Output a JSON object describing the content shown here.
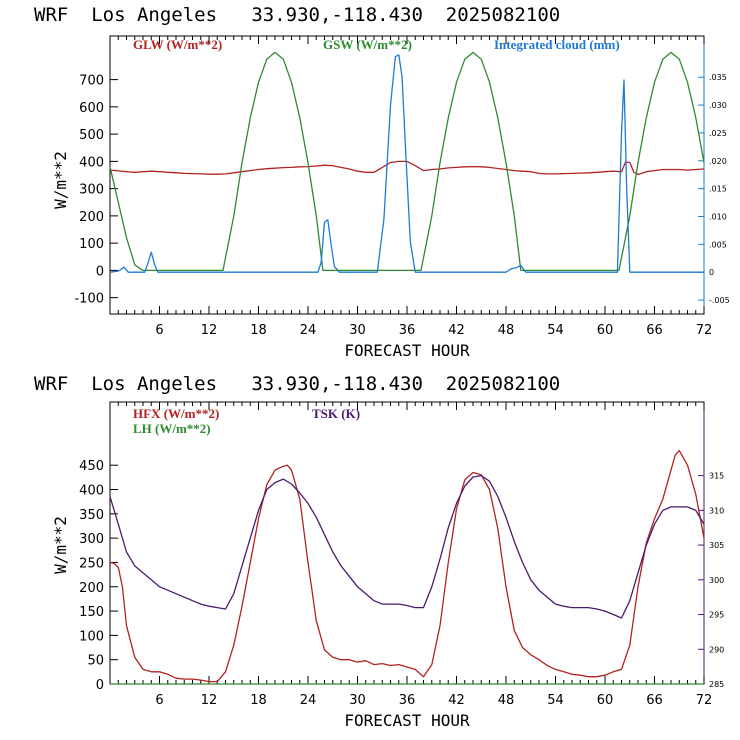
{
  "colors": {
    "red": "#b22222",
    "green": "#2e8b2e",
    "blue": "#1e7ad2",
    "purple": "#4b1a6e",
    "axis_left": "#000000",
    "axis_right_top": "#1e7ad2",
    "axis_right_bottom": "#4b1a6e"
  },
  "chart_data": [
    {
      "type": "line",
      "title": "WRF  Los Angeles   33.930,-118.430  2025082100",
      "xlabel": "FORECAST HOUR",
      "ylabel": "W/m**2",
      "xlim": [
        0,
        72
      ],
      "ylim": [
        -160,
        860
      ],
      "x_ticks": [
        "6",
        "12",
        "18",
        "24",
        "30",
        "36",
        "42",
        "48",
        "54",
        "60",
        "66",
        "72"
      ],
      "y_ticks": [
        "-100",
        "0",
        "100",
        "200",
        "300",
        "400",
        "500",
        "600",
        "700"
      ],
      "y2lim": [
        -0.0075,
        0.0424
      ],
      "y2_ticks": [
        "-.005",
        "0",
        ".005",
        ".010",
        ".015",
        ".020",
        ".025",
        ".030",
        ".035"
      ],
      "legend": [
        "GLW (W/m**2)",
        "GSW (W/m**2)",
        "Integrated cloud (mm)"
      ],
      "series": [
        {
          "name": "GLW (W/m**2)",
          "axis": "left",
          "color": "#b22222",
          "x": [
            0,
            1,
            2,
            3,
            4,
            5,
            6,
            7,
            8,
            9,
            10,
            11,
            12,
            13,
            14,
            15,
            16,
            17,
            18,
            19,
            20,
            21,
            22,
            23,
            24,
            25,
            26,
            27,
            28,
            29,
            30,
            31,
            32,
            33,
            34,
            35,
            36,
            37,
            38,
            39,
            40,
            41,
            42,
            43,
            44,
            45,
            46,
            47,
            48,
            49,
            50,
            51,
            52,
            53,
            54,
            55,
            56,
            57,
            58,
            59,
            60,
            61,
            62,
            62.5,
            63,
            63.5,
            64,
            65,
            66,
            67,
            68,
            69,
            70,
            71,
            72
          ],
          "y": [
            368,
            365,
            362,
            360,
            362,
            364,
            362,
            360,
            358,
            356,
            355,
            354,
            353,
            353,
            354,
            358,
            362,
            366,
            370,
            373,
            375,
            377,
            378,
            380,
            381,
            383,
            386,
            384,
            378,
            372,
            364,
            360,
            360,
            378,
            396,
            400,
            400,
            384,
            366,
            370,
            372,
            376,
            378,
            380,
            381,
            380,
            378,
            374,
            370,
            366,
            364,
            362,
            356,
            354,
            354,
            355,
            356,
            357,
            358,
            360,
            362,
            364,
            362,
            398,
            396,
            360,
            352,
            362,
            366,
            370,
            370,
            370,
            368,
            370,
            372
          ]
        },
        {
          "name": "GSW (W/m**2)",
          "axis": "left",
          "color": "#2e8b2e",
          "x": [
            0,
            1,
            2,
            3,
            4,
            5,
            6,
            7,
            8,
            9,
            10,
            11,
            12,
            13,
            13.7,
            15,
            16,
            17,
            18,
            19,
            20,
            21,
            22,
            23,
            24,
            25,
            25.8,
            27,
            28,
            29,
            30,
            31,
            32,
            33,
            34,
            35,
            36,
            37,
            37.7,
            39,
            40,
            41,
            42,
            43,
            44,
            45,
            46,
            47,
            48,
            49,
            49.8,
            51,
            52,
            53,
            54,
            55,
            56,
            57,
            58,
            59,
            60,
            61,
            61.7,
            63,
            64,
            65,
            66,
            67,
            68,
            69,
            70,
            71,
            72
          ],
          "y": [
            380,
            250,
            120,
            20,
            0,
            0,
            0,
            0,
            0,
            0,
            0,
            0,
            0,
            0,
            0,
            200,
            395,
            560,
            690,
            775,
            800,
            775,
            690,
            560,
            395,
            200,
            0,
            0,
            0,
            0,
            0,
            0,
            0,
            0,
            0,
            0,
            0,
            0,
            0,
            200,
            395,
            560,
            690,
            775,
            800,
            775,
            690,
            560,
            395,
            200,
            0,
            0,
            0,
            0,
            0,
            0,
            0,
            0,
            0,
            0,
            0,
            0,
            0,
            200,
            395,
            560,
            690,
            775,
            800,
            775,
            690,
            560,
            395
          ]
        },
        {
          "name": "Integrated cloud (mm)",
          "axis": "right",
          "color": "#1e7ad2",
          "x": [
            0,
            1,
            1.7,
            2.2,
            4.2,
            4.6,
            5,
            5.4,
            5.8,
            25.2,
            25.6,
            26,
            26.4,
            26.8,
            27.2,
            27.8,
            32.4,
            33.2,
            34,
            34.6,
            35,
            35.4,
            35.8,
            36.4,
            37,
            48,
            48.6,
            49.2,
            49.8,
            50.4,
            61.5,
            62,
            62.3,
            62.6,
            63,
            63.4,
            72
          ],
          "y": [
            0,
            0.0002,
            0.0009,
            0,
            0,
            0.0016,
            0.0036,
            0.0014,
            0,
            0,
            0.0018,
            0.009,
            0.0094,
            0.005,
            0.001,
            0,
            0,
            0.0095,
            0.03,
            0.0387,
            0.039,
            0.035,
            0.023,
            0.0055,
            0,
            0,
            0.0006,
            0.0008,
            0.0012,
            0,
            0,
            0.025,
            0.0345,
            0.016,
            0,
            0,
            0
          ]
        }
      ]
    },
    {
      "type": "line",
      "title": "WRF  Los Angeles   33.930,-118.430  2025082100",
      "xlabel": "FORECAST HOUR",
      "ylabel": "W/m**2",
      "xlim": [
        0,
        72
      ],
      "ylim": [
        0,
        580
      ],
      "x_ticks": [
        "6",
        "12",
        "18",
        "24",
        "30",
        "36",
        "42",
        "48",
        "54",
        "60",
        "66",
        "72"
      ],
      "y_ticks": [
        "0",
        "50",
        "100",
        "150",
        "200",
        "250",
        "300",
        "350",
        "400",
        "450"
      ],
      "y2lim": [
        285,
        325.6
      ],
      "y2_ticks": [
        "285",
        "290",
        "295",
        "300",
        "305",
        "310",
        "315"
      ],
      "legend": [
        "HFX (W/m**2)",
        "LH  (W/m**2)",
        "TSK (K)"
      ],
      "series": [
        {
          "name": "HFX (W/m**2)",
          "axis": "left",
          "color": "#b22222",
          "x": [
            0,
            0.5,
            1,
            1.5,
            2,
            3,
            4,
            5,
            6,
            7,
            8,
            9,
            10,
            11,
            12,
            13,
            14,
            15,
            16,
            17,
            18,
            19,
            20,
            21,
            21.5,
            22,
            23,
            24,
            25,
            26,
            27,
            28,
            29,
            30,
            31,
            32,
            33,
            34,
            35,
            36,
            37,
            38,
            39,
            40,
            41,
            42,
            43,
            44,
            45,
            46,
            47,
            48,
            49,
            50,
            51,
            52,
            53,
            54,
            55,
            56,
            57,
            58,
            59,
            60,
            61,
            62,
            63,
            64,
            65,
            66,
            67,
            68,
            68.5,
            69,
            70,
            71,
            72
          ],
          "y": [
            250,
            248,
            240,
            200,
            120,
            55,
            30,
            25,
            25,
            20,
            12,
            10,
            10,
            8,
            5,
            5,
            25,
            80,
            160,
            250,
            340,
            410,
            440,
            448,
            450,
            440,
            380,
            250,
            130,
            70,
            55,
            50,
            50,
            45,
            48,
            40,
            42,
            38,
            40,
            35,
            30,
            15,
            40,
            120,
            250,
            360,
            420,
            435,
            430,
            400,
            320,
            200,
            110,
            75,
            60,
            50,
            38,
            30,
            25,
            20,
            18,
            15,
            15,
            18,
            25,
            30,
            80,
            200,
            290,
            340,
            380,
            440,
            470,
            480,
            450,
            390,
            300
          ]
        },
        {
          "name": "LH  (W/m**2)",
          "axis": "left",
          "color": "#2e8b2e",
          "x": [
            0,
            72
          ],
          "y": [
            0,
            0
          ]
        },
        {
          "name": "TSK (K)",
          "axis": "right",
          "color": "#4b1a6e",
          "x": [
            0,
            1,
            2,
            3,
            4,
            5,
            6,
            7,
            8,
            9,
            10,
            11,
            12,
            13,
            14,
            15,
            16,
            17,
            18,
            19,
            20,
            21,
            22,
            23,
            24,
            25,
            26,
            27,
            28,
            29,
            30,
            31,
            32,
            33,
            34,
            35,
            36,
            37,
            38,
            39,
            40,
            41,
            42,
            43,
            44,
            45,
            46,
            47,
            48,
            49,
            50,
            51,
            52,
            53,
            54,
            55,
            56,
            57,
            58,
            59,
            60,
            61,
            62,
            63,
            64,
            65,
            66,
            67,
            68,
            69,
            70,
            71,
            72
          ],
          "y": [
            312,
            308,
            304,
            302,
            301,
            300,
            299,
            298.5,
            298,
            297.5,
            297,
            296.5,
            296.2,
            296,
            295.8,
            298,
            302,
            306,
            310,
            313,
            314,
            314.5,
            313.8,
            312.5,
            311,
            309,
            306.5,
            304,
            302,
            300.5,
            299,
            298,
            297,
            296.5,
            296.5,
            296.5,
            296.3,
            296,
            296,
            299,
            303,
            307.5,
            311,
            313.5,
            314.8,
            315,
            314.2,
            312,
            309,
            305.5,
            302.5,
            300,
            298.5,
            297.5,
            296.5,
            296.2,
            296,
            296,
            296,
            295.8,
            295.5,
            295,
            294.5,
            297,
            301,
            305,
            308,
            310,
            310.5,
            310.5,
            310.5,
            310,
            308
          ]
        }
      ]
    }
  ]
}
